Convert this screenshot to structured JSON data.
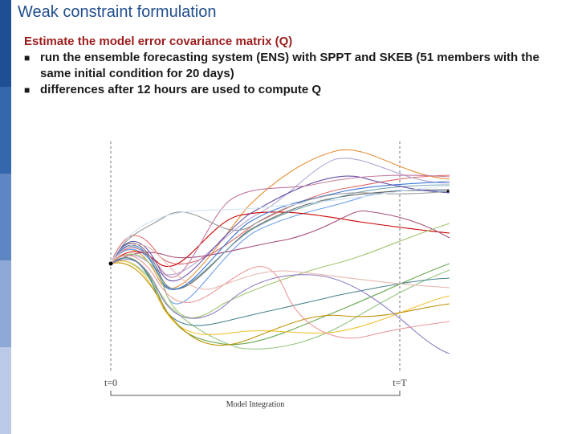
{
  "slide": {
    "title": "Weak constraint formulation",
    "heading": "Estimate the model error covariance matrix (Q)",
    "bullets": [
      "run the ensemble forecasting system (ENS) with SPPT and SKEB (51 members with the same initial condition for 20 days)",
      "differences after 12 hours are used to compute Q"
    ]
  },
  "figure": {
    "label_start": "t=0",
    "label_end": "t=T",
    "axis_caption": "Model Integration"
  },
  "colors": {
    "title": "#1f4e8c",
    "heading": "#9c1c1c",
    "sidebar": [
      "#1e4f94",
      "#3567ad",
      "#5d86c2",
      "#8ea9d6",
      "#b9c9e6"
    ]
  }
}
